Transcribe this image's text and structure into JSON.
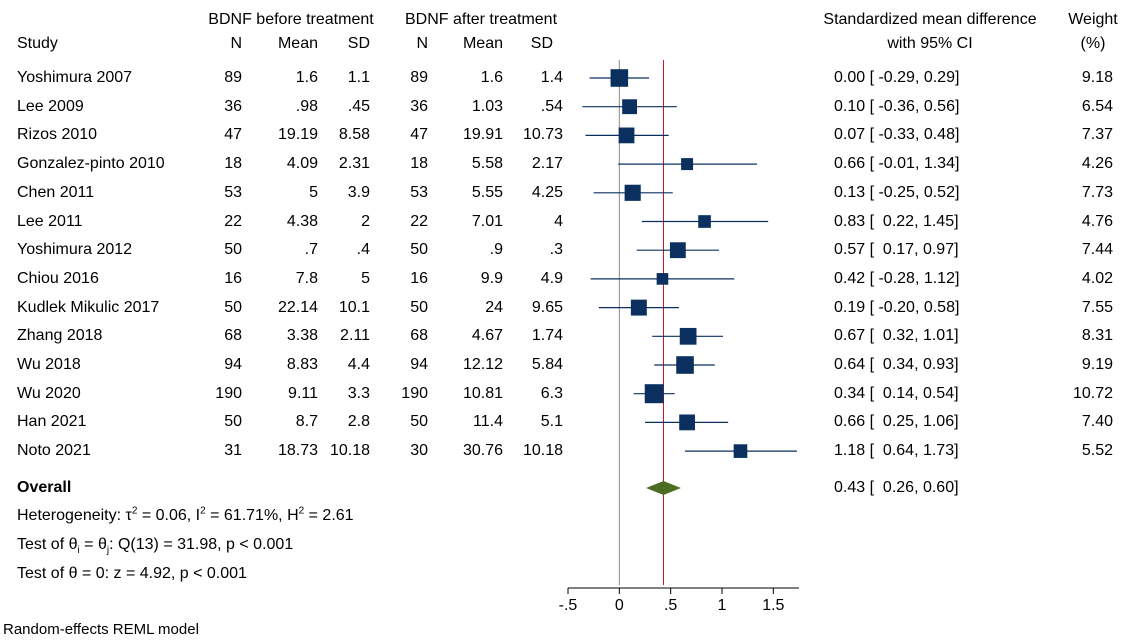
{
  "headers": {
    "group1_title": "BDNF before treatment",
    "group2_title": "BDNF after treatment",
    "study": "Study",
    "n": "N",
    "mean": "Mean",
    "sd": "SD",
    "smd_line1": "Standardized mean difference",
    "smd_line2": "with 95% CI",
    "weight_line1": "Weight",
    "weight_line2": "(%)"
  },
  "rows": [
    {
      "study": "Yoshimura 2007",
      "n1": "89",
      "mean1": "1.6",
      "sd1": "1.1",
      "n2": "89",
      "mean2": "1.6",
      "sd2": "1.4",
      "ci_text": "0.00 [ -0.29, 0.29]",
      "weight": "9.18"
    },
    {
      "study": "Lee 2009",
      "n1": "36",
      "mean1": ".98",
      "sd1": ".45",
      "n2": "36",
      "mean2": "1.03",
      "sd2": ".54",
      "ci_text": "0.10 [ -0.36, 0.56]",
      "weight": "6.54"
    },
    {
      "study": "Rizos 2010",
      "n1": "47",
      "mean1": "19.19",
      "sd1": "8.58",
      "n2": "47",
      "mean2": "19.91",
      "sd2": "10.73",
      "ci_text": "0.07 [ -0.33, 0.48]",
      "weight": "7.37"
    },
    {
      "study": "Gonzalez-pinto 2010",
      "n1": "18",
      "mean1": "4.09",
      "sd1": "2.31",
      "n2": "18",
      "mean2": "5.58",
      "sd2": "2.17",
      "ci_text": "0.66 [ -0.01, 1.34]",
      "weight": "4.26"
    },
    {
      "study": "Chen 2011",
      "n1": "53",
      "mean1": "5",
      "sd1": "3.9",
      "n2": "53",
      "mean2": "5.55",
      "sd2": "4.25",
      "ci_text": "0.13 [ -0.25, 0.52]",
      "weight": "7.73"
    },
    {
      "study": "Lee 2011",
      "n1": "22",
      "mean1": "4.38",
      "sd1": "2",
      "n2": "22",
      "mean2": "7.01",
      "sd2": "4",
      "ci_text": "0.83 [  0.22, 1.45]",
      "weight": "4.76"
    },
    {
      "study": "Yoshimura 2012",
      "n1": "50",
      "mean1": ".7",
      "sd1": ".4",
      "n2": "50",
      "mean2": ".9",
      "sd2": ".3",
      "ci_text": "0.57 [  0.17, 0.97]",
      "weight": "7.44"
    },
    {
      "study": "Chiou 2016",
      "n1": "16",
      "mean1": "7.8",
      "sd1": "5",
      "n2": "16",
      "mean2": "9.9",
      "sd2": "4.9",
      "ci_text": "0.42 [ -0.28, 1.12]",
      "weight": "4.02"
    },
    {
      "study": "Kudlek Mikulic 2017",
      "n1": "50",
      "mean1": "22.14",
      "sd1": "10.1",
      "n2": "50",
      "mean2": "24",
      "sd2": "9.65",
      "ci_text": "0.19 [ -0.20, 0.58]",
      "weight": "7.55"
    },
    {
      "study": "Zhang 2018",
      "n1": "68",
      "mean1": "3.38",
      "sd1": "2.11",
      "n2": "68",
      "mean2": "4.67",
      "sd2": "1.74",
      "ci_text": "0.67 [  0.32, 1.01]",
      "weight": "8.31"
    },
    {
      "study": "Wu 2018",
      "n1": "94",
      "mean1": "8.83",
      "sd1": "4.4",
      "n2": "94",
      "mean2": "12.12",
      "sd2": "5.84",
      "ci_text": "0.64 [  0.34, 0.93]",
      "weight": "9.19"
    },
    {
      "study": "Wu 2020",
      "n1": "190",
      "mean1": "9.11",
      "sd1": "3.3",
      "n2": "190",
      "mean2": "10.81",
      "sd2": "6.3",
      "ci_text": "0.34 [  0.14, 0.54]",
      "weight": "10.72"
    },
    {
      "study": "Han 2021",
      "n1": "50",
      "mean1": "8.7",
      "sd1": "2.8",
      "n2": "50",
      "mean2": "11.4",
      "sd2": "5.1",
      "ci_text": "0.66 [  0.25, 1.06]",
      "weight": "7.40"
    },
    {
      "study": "Noto 2021",
      "n1": "31",
      "mean1": "18.73",
      "sd1": "10.18",
      "n2": "30",
      "mean2": "30.76",
      "sd2": "10.18",
      "ci_text": "1.18 [  0.64, 1.73]",
      "weight": "5.52"
    }
  ],
  "overall": {
    "label": "Overall",
    "ci_text": "0.43 [  0.26, 0.60]"
  },
  "stats": {
    "het_a": "Heterogeneity: τ",
    "het_b": " = 0.06, I",
    "het_c": " = 61.71%, H",
    "het_d": " = 2.61",
    "sup2": "2",
    "test1_a": "Test of θ",
    "test1_sub_i": "i",
    "test1_b": " = θ",
    "test1_sub_j": "j",
    "test1_c": ": Q(13) = 31.98, p < 0.001",
    "test2": "Test of θ = 0: z = 4.92, p < 0.001"
  },
  "footer": "Random-effects REML model",
  "chart_data": {
    "type": "forest",
    "xlim": [
      -0.5,
      1.75
    ],
    "ticks": [
      -0.5,
      0,
      0.5,
      1,
      1.5
    ],
    "tick_labels": [
      "-.5",
      "0",
      ".5",
      "1",
      "1.5"
    ],
    "reference_line": 0,
    "overall_line": 0.43,
    "marker_color": "#0b3060",
    "overall_color": "#4e6b22",
    "overall_line_color": "#c8102e",
    "points": [
      {
        "study": "Yoshimura 2007",
        "est": 0.0,
        "lo": -0.29,
        "hi": 0.29,
        "weight": 9.18
      },
      {
        "study": "Lee 2009",
        "est": 0.1,
        "lo": -0.36,
        "hi": 0.56,
        "weight": 6.54
      },
      {
        "study": "Rizos 2010",
        "est": 0.07,
        "lo": -0.33,
        "hi": 0.48,
        "weight": 7.37
      },
      {
        "study": "Gonzalez-pinto 2010",
        "est": 0.66,
        "lo": -0.01,
        "hi": 1.34,
        "weight": 4.26
      },
      {
        "study": "Chen 2011",
        "est": 0.13,
        "lo": -0.25,
        "hi": 0.52,
        "weight": 7.73
      },
      {
        "study": "Lee 2011",
        "est": 0.83,
        "lo": 0.22,
        "hi": 1.45,
        "weight": 4.76
      },
      {
        "study": "Yoshimura 2012",
        "est": 0.57,
        "lo": 0.17,
        "hi": 0.97,
        "weight": 7.44
      },
      {
        "study": "Chiou 2016",
        "est": 0.42,
        "lo": -0.28,
        "hi": 1.12,
        "weight": 4.02
      },
      {
        "study": "Kudlek Mikulic 2017",
        "est": 0.19,
        "lo": -0.2,
        "hi": 0.58,
        "weight": 7.55
      },
      {
        "study": "Zhang 2018",
        "est": 0.67,
        "lo": 0.32,
        "hi": 1.01,
        "weight": 8.31
      },
      {
        "study": "Wu 2018",
        "est": 0.64,
        "lo": 0.34,
        "hi": 0.93,
        "weight": 9.19
      },
      {
        "study": "Wu 2020",
        "est": 0.34,
        "lo": 0.14,
        "hi": 0.54,
        "weight": 10.72
      },
      {
        "study": "Han 2021",
        "est": 0.66,
        "lo": 0.25,
        "hi": 1.06,
        "weight": 7.4
      },
      {
        "study": "Noto 2021",
        "est": 1.18,
        "lo": 0.64,
        "hi": 1.73,
        "weight": 5.52
      }
    ],
    "overall": {
      "est": 0.43,
      "lo": 0.26,
      "hi": 0.6
    }
  }
}
